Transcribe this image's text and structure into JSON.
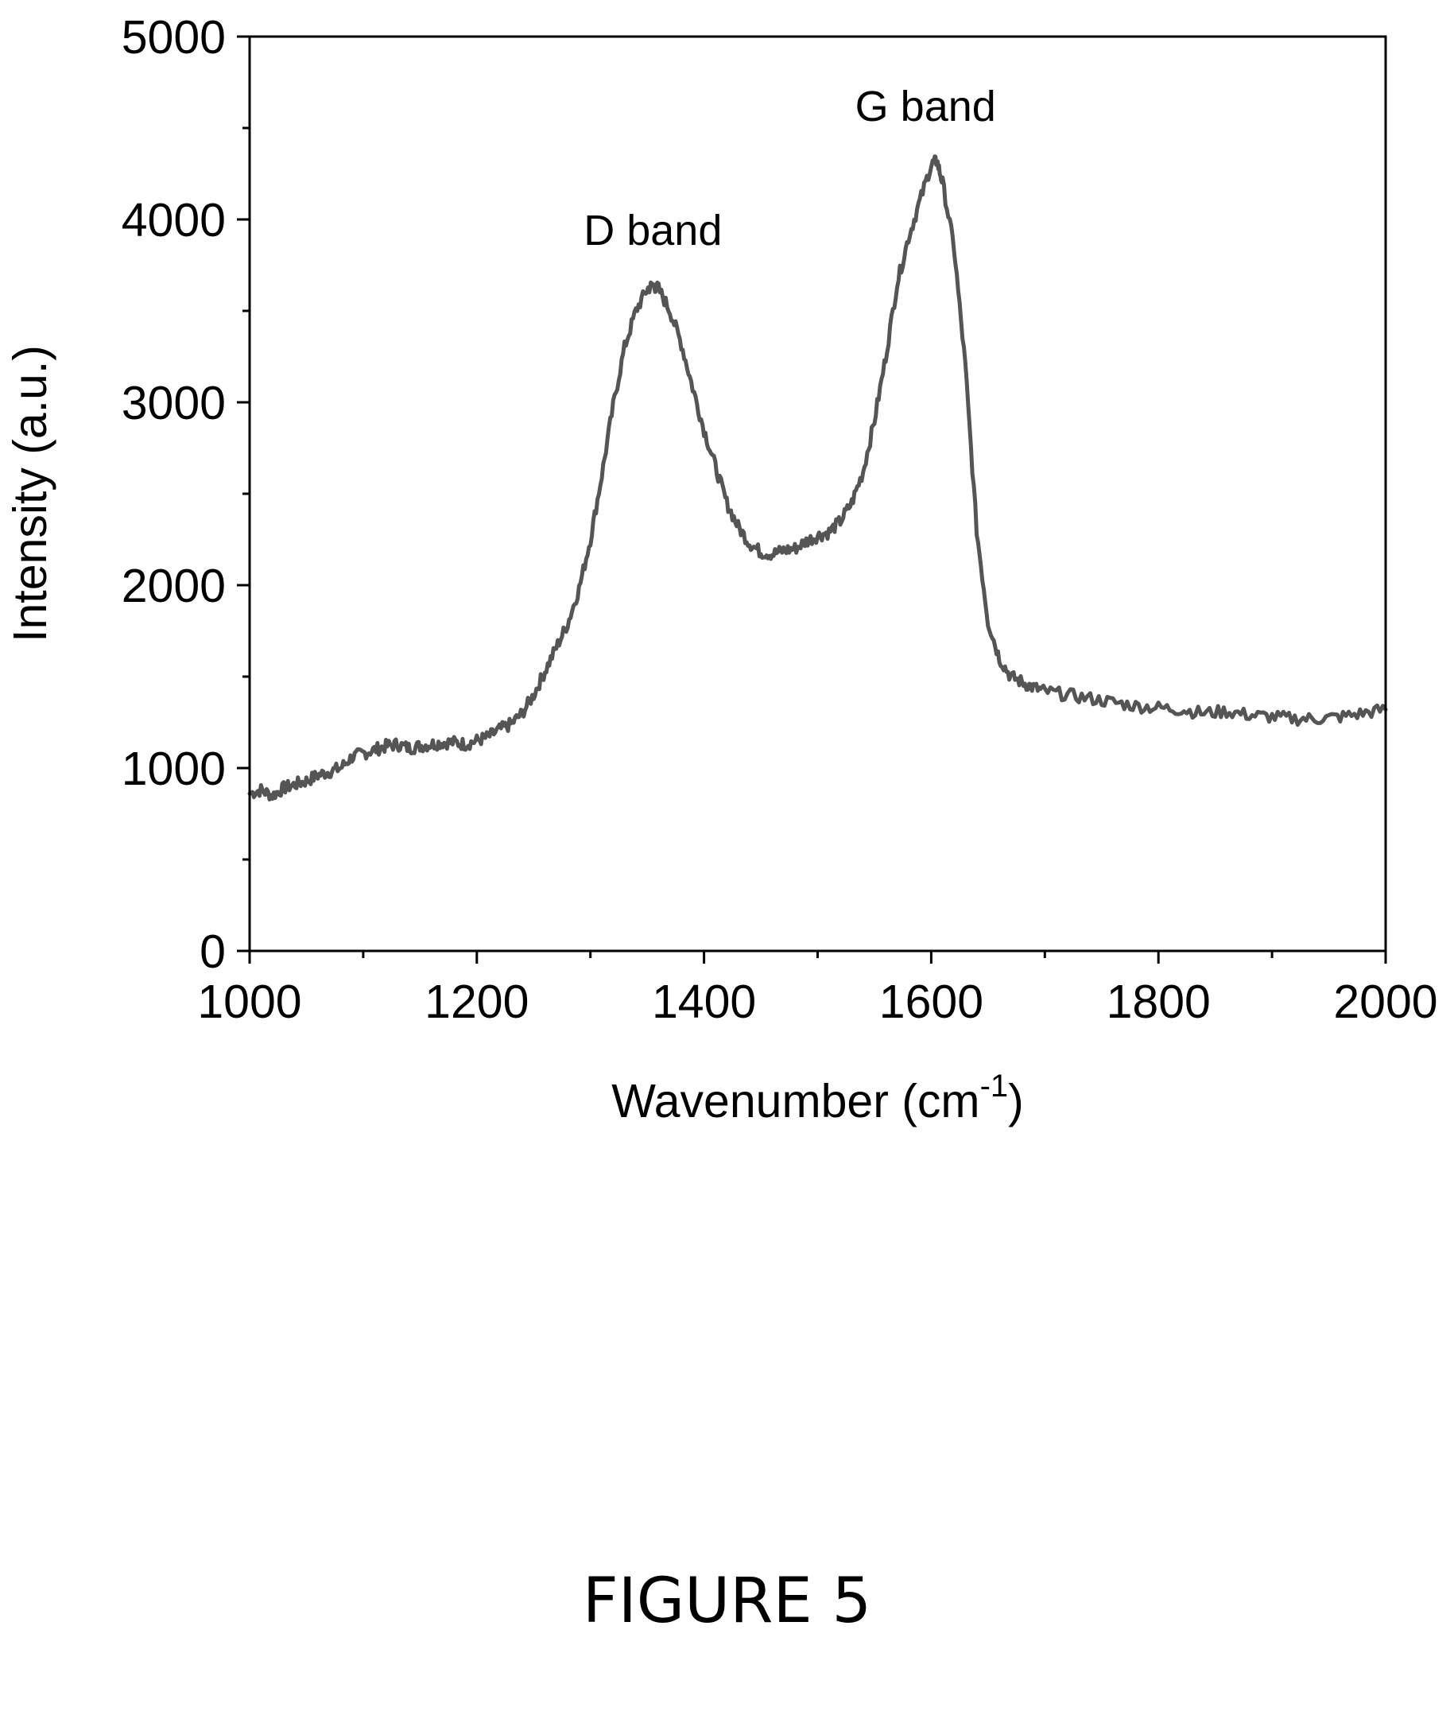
{
  "chart_data": {
    "type": "line",
    "xlabel": "Wavenumber (cm",
    "xlabel_sup": "-1",
    "xlabel_close": ")",
    "ylabel": "Intensity (a.u.)",
    "xlim": [
      1000,
      2000
    ],
    "ylim": [
      0,
      5000
    ],
    "x_ticks": [
      1000,
      1200,
      1400,
      1600,
      1800,
      2000
    ],
    "x_tick_labels": [
      "1000",
      "1200",
      "1400",
      "1600",
      "1800",
      "2000"
    ],
    "y_ticks": [
      0,
      1000,
      2000,
      3000,
      4000,
      5000
    ],
    "y_tick_labels": [
      "0",
      "1000",
      "2000",
      "3000",
      "4000",
      "5000"
    ],
    "x_minor_step": 100,
    "y_minor_step": 500,
    "grid": false,
    "line_color": "#555555",
    "series": [
      {
        "x": [
          1000,
          1010,
          1020,
          1030,
          1040,
          1050,
          1060,
          1070,
          1080,
          1090,
          1100,
          1110,
          1120,
          1130,
          1140,
          1150,
          1160,
          1170,
          1180,
          1190,
          1200,
          1210,
          1220,
          1230,
          1240,
          1250,
          1260,
          1270,
          1280,
          1290,
          1300,
          1310,
          1320,
          1330,
          1340,
          1350,
          1355,
          1360,
          1370,
          1380,
          1390,
          1400,
          1410,
          1420,
          1430,
          1440,
          1450,
          1460,
          1470,
          1480,
          1490,
          1500,
          1510,
          1520,
          1530,
          1540,
          1550,
          1560,
          1570,
          1580,
          1590,
          1600,
          1605,
          1610,
          1620,
          1630,
          1640,
          1650,
          1660,
          1670,
          1680,
          1690,
          1700,
          1720,
          1740,
          1760,
          1780,
          1800,
          1820,
          1840,
          1860,
          1880,
          1900,
          1920,
          1940,
          1960,
          1980,
          2000
        ],
        "y": [
          860,
          880,
          850,
          890,
          910,
          930,
          960,
          980,
          1000,
          1060,
          1080,
          1100,
          1120,
          1130,
          1110,
          1120,
          1130,
          1140,
          1140,
          1130,
          1150,
          1170,
          1210,
          1240,
          1300,
          1400,
          1530,
          1660,
          1790,
          1980,
          2250,
          2600,
          2980,
          3300,
          3500,
          3620,
          3640,
          3620,
          3500,
          3320,
          3080,
          2850,
          2650,
          2450,
          2320,
          2230,
          2180,
          2170,
          2190,
          2200,
          2240,
          2270,
          2290,
          2350,
          2450,
          2620,
          2900,
          3250,
          3650,
          3900,
          4100,
          4300,
          4320,
          4200,
          3850,
          3200,
          2300,
          1800,
          1600,
          1500,
          1470,
          1440,
          1420,
          1400,
          1380,
          1360,
          1340,
          1330,
          1320,
          1300,
          1310,
          1290,
          1280,
          1270,
          1270,
          1280,
          1300,
          1320
        ]
      }
    ],
    "annotations": [
      {
        "text": "D band",
        "x": 1355,
        "y": 3860
      },
      {
        "text": "G band",
        "x": 1595,
        "y": 4540
      }
    ]
  },
  "figure": {
    "caption": "FIGURE 5"
  }
}
